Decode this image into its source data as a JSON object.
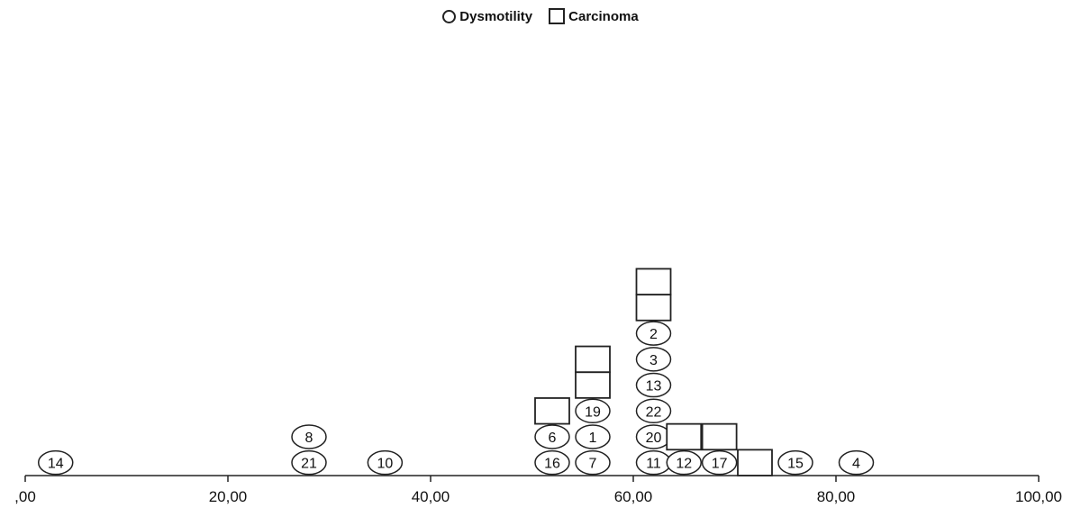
{
  "chart_data": {
    "type": "scatter",
    "subtype": "dot-plot",
    "title": "",
    "xlabel": "",
    "ylabel": "",
    "xlim": [
      0,
      100
    ],
    "xticks": [
      ",00",
      "20,00",
      "40,00",
      "60,00",
      "80,00",
      "100,00"
    ],
    "xtick_values": [
      0,
      20,
      40,
      60,
      80,
      100
    ],
    "legend_position": "top-center",
    "series": [
      {
        "marker": "circle",
        "legend_label": "Dysmotility"
      },
      {
        "marker": "square",
        "legend_label": "Carcinoma"
      }
    ],
    "points": [
      {
        "series": 0,
        "x": 3,
        "level": 0,
        "label": "14"
      },
      {
        "series": 0,
        "x": 28,
        "level": 0,
        "label": "21"
      },
      {
        "series": 0,
        "x": 28,
        "level": 1,
        "label": "8"
      },
      {
        "series": 0,
        "x": 35.5,
        "level": 0,
        "label": "10"
      },
      {
        "series": 0,
        "x": 52,
        "level": 0,
        "label": "16"
      },
      {
        "series": 0,
        "x": 52,
        "level": 1,
        "label": "6"
      },
      {
        "series": 1,
        "x": 52,
        "level": 2,
        "label": ""
      },
      {
        "series": 0,
        "x": 56,
        "level": 0,
        "label": "7"
      },
      {
        "series": 0,
        "x": 56,
        "level": 1,
        "label": "1"
      },
      {
        "series": 0,
        "x": 56,
        "level": 2,
        "label": "19"
      },
      {
        "series": 1,
        "x": 56,
        "level": 3,
        "label": ""
      },
      {
        "series": 1,
        "x": 56,
        "level": 4,
        "label": ""
      },
      {
        "series": 0,
        "x": 62,
        "level": 0,
        "label": "11"
      },
      {
        "series": 0,
        "x": 62,
        "level": 1,
        "label": "20"
      },
      {
        "series": 0,
        "x": 62,
        "level": 2,
        "label": "22"
      },
      {
        "series": 0,
        "x": 62,
        "level": 3,
        "label": "13"
      },
      {
        "series": 0,
        "x": 62,
        "level": 4,
        "label": "3"
      },
      {
        "series": 0,
        "x": 62,
        "level": 5,
        "label": "2"
      },
      {
        "series": 1,
        "x": 62,
        "level": 6,
        "label": ""
      },
      {
        "series": 1,
        "x": 62,
        "level": 7,
        "label": ""
      },
      {
        "series": 0,
        "x": 65,
        "level": 0,
        "label": "12"
      },
      {
        "series": 1,
        "x": 65,
        "level": 1,
        "label": ""
      },
      {
        "series": 0,
        "x": 68.5,
        "level": 0,
        "label": "17"
      },
      {
        "series": 1,
        "x": 68.5,
        "level": 1,
        "label": ""
      },
      {
        "series": 1,
        "x": 72,
        "level": 0,
        "label": ""
      },
      {
        "series": 0,
        "x": 76,
        "level": 0,
        "label": "15"
      },
      {
        "series": 0,
        "x": 82,
        "level": 0,
        "label": "4"
      }
    ]
  }
}
